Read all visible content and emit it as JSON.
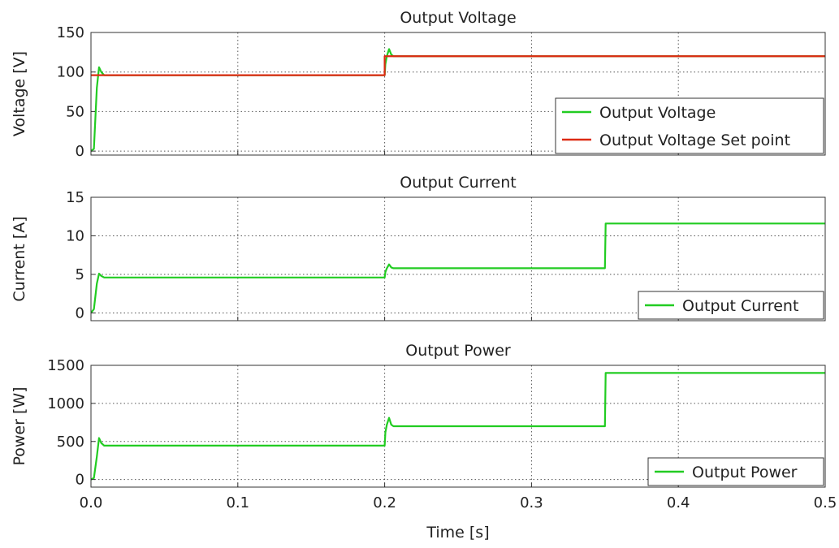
{
  "colors": {
    "green": "#22cc22",
    "red": "#dd2a12"
  },
  "chart_data": [
    {
      "type": "line",
      "title": "Output Voltage",
      "xlabel": "",
      "ylabel": "Voltage [V]",
      "xlim": [
        0,
        0.5
      ],
      "ylim": [
        -5,
        150
      ],
      "xticks": [
        0,
        0.1,
        0.2,
        0.3,
        0.4,
        0.5
      ],
      "yticks": [
        0,
        50,
        100,
        150
      ],
      "grid": true,
      "legend": "bottom-right",
      "series": [
        {
          "name": "Output Voltage",
          "color": "#22cc22",
          "points": [
            [
              0,
              0
            ],
            [
              0.002,
              3
            ],
            [
              0.004,
              80
            ],
            [
              0.0055,
              106
            ],
            [
              0.007,
              100
            ],
            [
              0.009,
              96
            ],
            [
              0.2,
              96
            ],
            [
              0.2005,
              110
            ],
            [
              0.2015,
              120
            ],
            [
              0.203,
              129
            ],
            [
              0.2045,
              122
            ],
            [
              0.206,
              120
            ],
            [
              0.5,
              120
            ]
          ]
        },
        {
          "name": "Output Voltage Set point",
          "color": "#dd2a12",
          "points": [
            [
              0,
              96
            ],
            [
              0.2,
              96
            ],
            [
              0.2,
              120
            ],
            [
              0.5,
              120
            ]
          ]
        }
      ]
    },
    {
      "type": "line",
      "title": "Output Current",
      "xlabel": "",
      "ylabel": "Current [A]",
      "xlim": [
        0,
        0.5
      ],
      "ylim": [
        -1,
        15
      ],
      "xticks": [
        0,
        0.1,
        0.2,
        0.3,
        0.4,
        0.5
      ],
      "yticks": [
        0,
        5,
        10,
        15
      ],
      "grid": true,
      "legend": "bottom-right",
      "series": [
        {
          "name": "Output Current",
          "color": "#22cc22",
          "points": [
            [
              0,
              0
            ],
            [
              0.002,
              0.5
            ],
            [
              0.004,
              3.8
            ],
            [
              0.0055,
              5.1
            ],
            [
              0.007,
              4.8
            ],
            [
              0.009,
              4.6
            ],
            [
              0.2,
              4.6
            ],
            [
              0.2005,
              5.3
            ],
            [
              0.2015,
              5.8
            ],
            [
              0.203,
              6.3
            ],
            [
              0.2045,
              5.9
            ],
            [
              0.206,
              5.8
            ],
            [
              0.35,
              5.8
            ],
            [
              0.3505,
              11.6
            ],
            [
              0.5,
              11.6
            ]
          ]
        }
      ]
    },
    {
      "type": "line",
      "title": "Output Power",
      "xlabel": "Time [s]",
      "ylabel": "Power [W]",
      "xlim": [
        0,
        0.5
      ],
      "ylim": [
        -100,
        1500
      ],
      "xticks": [
        0,
        0.1,
        0.2,
        0.3,
        0.4,
        0.5
      ],
      "yticks": [
        0,
        500,
        1000,
        1500
      ],
      "grid": true,
      "legend": "bottom-right",
      "series": [
        {
          "name": "Output Power",
          "color": "#22cc22",
          "points": [
            [
              0,
              0
            ],
            [
              0.002,
              20
            ],
            [
              0.004,
              300
            ],
            [
              0.0055,
              545
            ],
            [
              0.007,
              480
            ],
            [
              0.009,
              445
            ],
            [
              0.2,
              445
            ],
            [
              0.2005,
              620
            ],
            [
              0.2015,
              720
            ],
            [
              0.203,
              810
            ],
            [
              0.2045,
              720
            ],
            [
              0.206,
              700
            ],
            [
              0.35,
              700
            ],
            [
              0.3505,
              1400
            ],
            [
              0.5,
              1400
            ]
          ]
        }
      ]
    }
  ]
}
